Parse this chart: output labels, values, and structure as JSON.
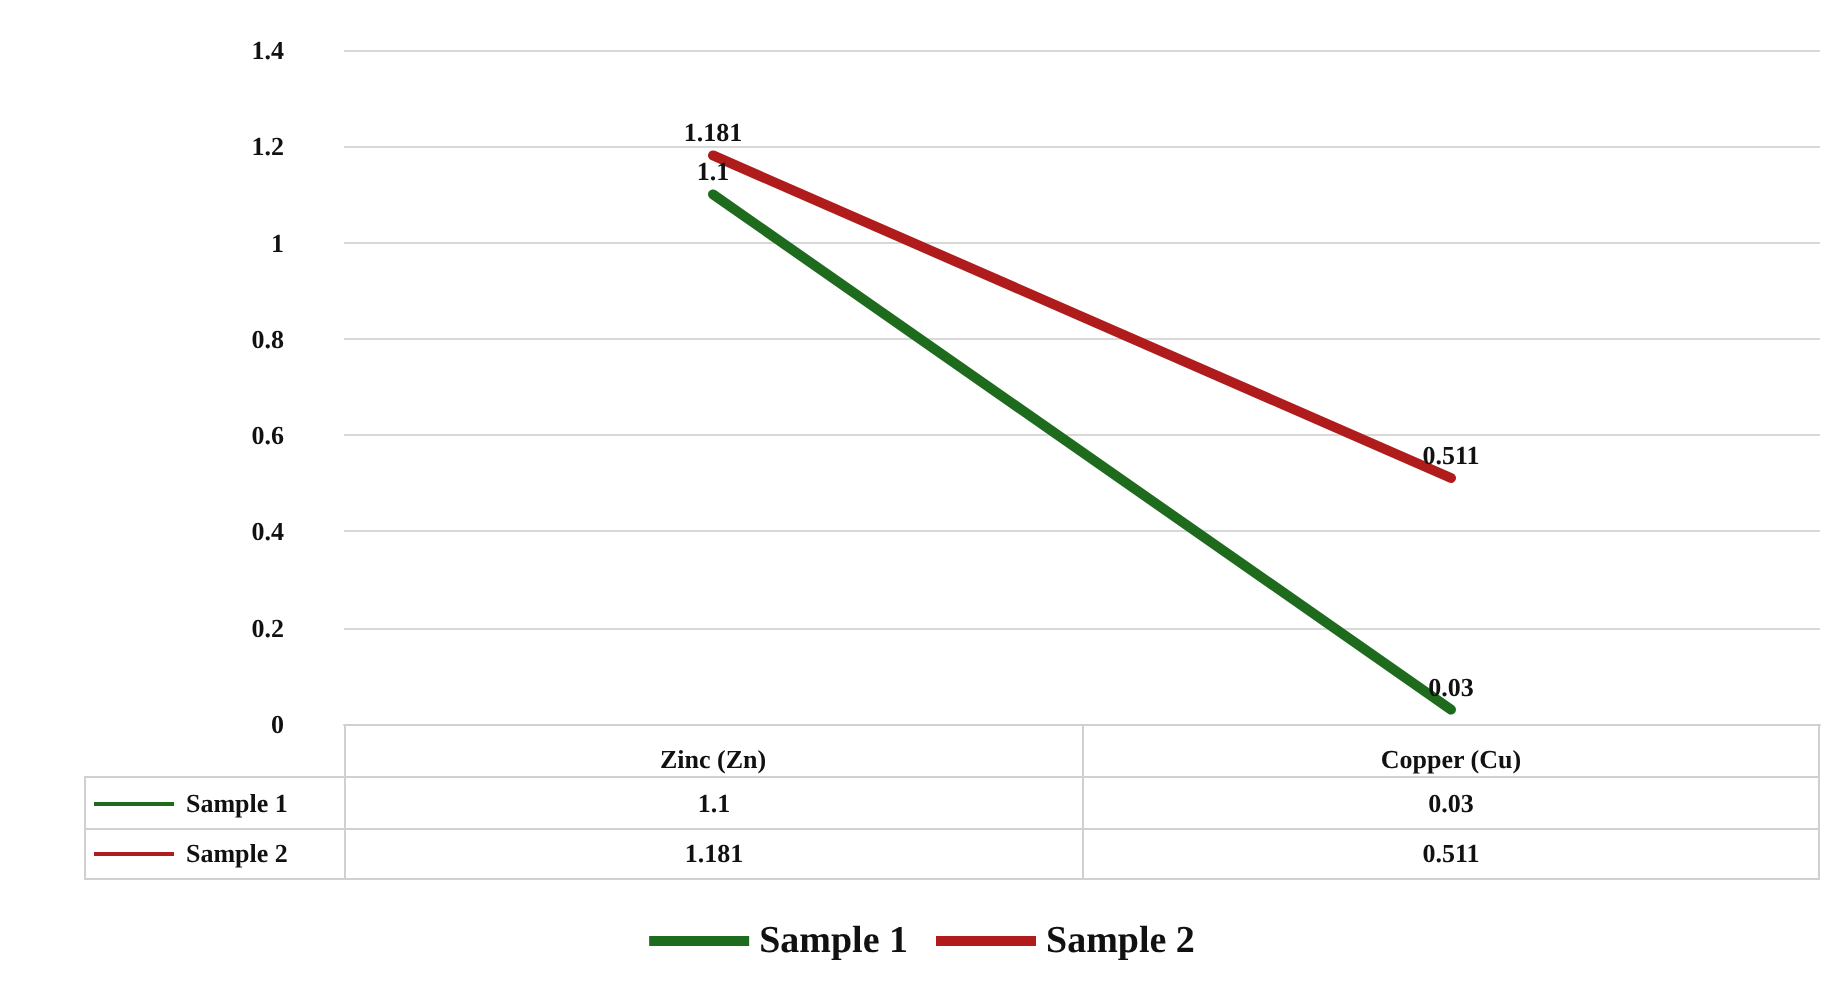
{
  "chart_data": {
    "type": "line",
    "categories": [
      "Zinc (Zn)",
      "Copper (Cu)"
    ],
    "series": [
      {
        "name": "Sample 1",
        "color": "#1e6b1e",
        "values": [
          1.1,
          0.03
        ],
        "value_labels": [
          "1.1",
          "0.03"
        ]
      },
      {
        "name": "Sample 2",
        "color": "#b01c1c",
        "values": [
          1.181,
          0.511
        ],
        "value_labels": [
          "1.181",
          "0.511"
        ]
      }
    ],
    "ylim": [
      0,
      1.4
    ],
    "yticks": [
      0,
      0.2,
      0.4,
      0.6,
      0.8,
      1,
      1.2,
      1.4
    ],
    "annotations": [
      "1.1",
      "0.03",
      "1.181",
      "0.511"
    ],
    "grid": "y",
    "legend": "bottom",
    "marker": "none",
    "line_style": "solid"
  }
}
